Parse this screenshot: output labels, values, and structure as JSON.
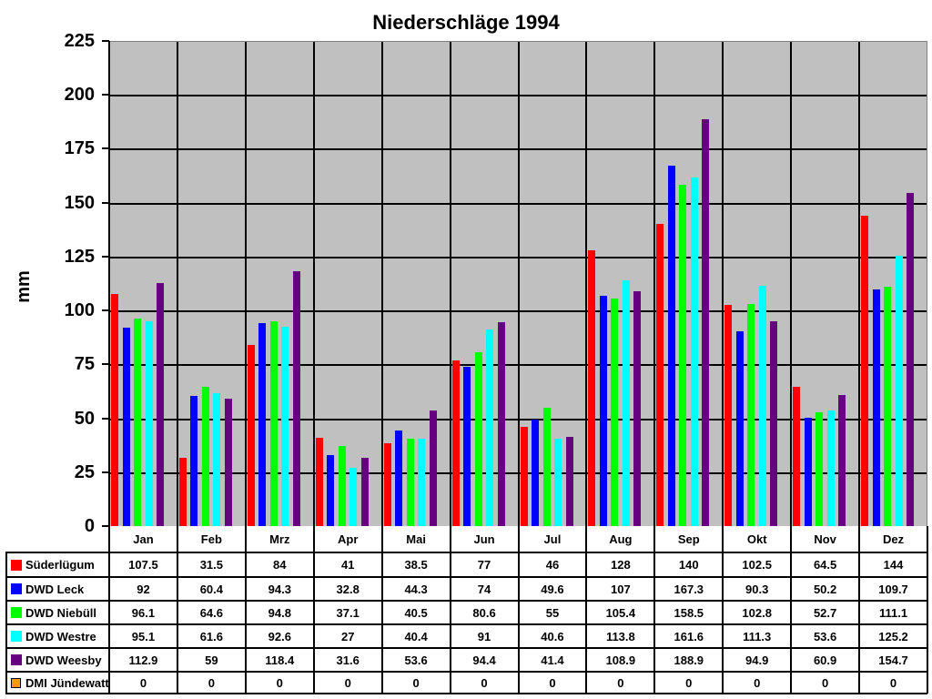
{
  "chart_data": {
    "type": "bar",
    "title": "Niederschläge 1994",
    "xlabel": "",
    "ylabel": "mm",
    "ylim": [
      0,
      225
    ],
    "yticks": [
      0,
      25,
      50,
      75,
      100,
      125,
      150,
      175,
      200,
      225
    ],
    "grid": true,
    "legend_position": "data-table",
    "categories": [
      "Jan",
      "Feb",
      "Mrz",
      "Apr",
      "Mai",
      "Jun",
      "Jul",
      "Aug",
      "Sep",
      "Okt",
      "Nov",
      "Dez"
    ],
    "series": [
      {
        "name": "Süderlügum",
        "color": "#ff0000",
        "values": [
          107.5,
          31.5,
          84,
          41,
          38.5,
          77,
          46,
          128,
          140,
          102.5,
          64.5,
          144
        ]
      },
      {
        "name": "DWD Leck",
        "color": "#0000ff",
        "values": [
          92,
          60.4,
          94.3,
          32.8,
          44.3,
          74,
          49.6,
          107,
          167.3,
          90.3,
          50.2,
          109.7
        ]
      },
      {
        "name": "DWD Niebüll",
        "color": "#00ff00",
        "values": [
          96.1,
          64.6,
          94.8,
          37.1,
          40.5,
          80.6,
          55,
          105.4,
          158.5,
          102.8,
          52.7,
          111.1
        ]
      },
      {
        "name": "DWD Westre",
        "color": "#00ffff",
        "values": [
          95.1,
          61.6,
          92.6,
          27,
          40.4,
          91,
          40.6,
          113.8,
          161.6,
          111.3,
          53.6,
          125.2
        ]
      },
      {
        "name": "DWD Weesby",
        "color": "#660080",
        "values": [
          112.9,
          59,
          118.4,
          31.6,
          53.6,
          94.4,
          41.4,
          108.9,
          188.9,
          94.9,
          60.9,
          154.7
        ]
      },
      {
        "name": "DMI Jündewatt",
        "color": "#ff9900",
        "values": [
          0,
          0,
          0,
          0,
          0,
          0,
          0,
          0,
          0,
          0,
          0,
          0
        ]
      }
    ]
  },
  "colors": {
    "plot_background": "#c0c0c0",
    "gridline": "#000000"
  }
}
